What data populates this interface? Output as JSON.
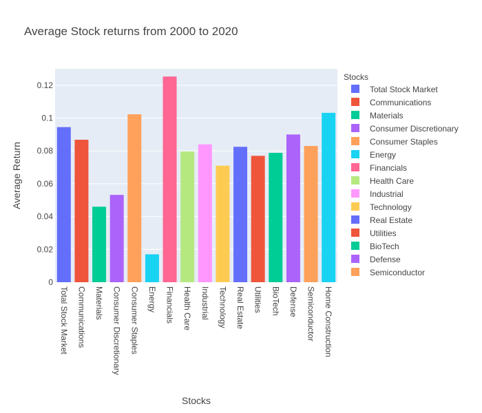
{
  "chart_data": {
    "type": "bar",
    "title": "Average Stock returns from 2000 to 2020",
    "xlabel": "Stocks",
    "ylabel": "Average Return",
    "ylim": [
      0,
      0.13
    ],
    "yticks": [
      0,
      0.02,
      0.04,
      0.06,
      0.08,
      0.1,
      0.12
    ],
    "ytick_labels": [
      "0",
      "0.02",
      "0.04",
      "0.06",
      "0.08",
      "0.1",
      "0.12"
    ],
    "grid": true,
    "legend_title": "Stocks",
    "legend_position": "right",
    "categories": [
      "Total Stock Market",
      "Communications",
      "Materials",
      "Consumer Discretionary",
      "Consumer Staples",
      "Energy",
      "Financials",
      "Health Care",
      "Industrial",
      "Technology",
      "Real Estate",
      "Utilities",
      "BioTech",
      "Defense",
      "Semiconductor",
      "Home Construction"
    ],
    "values": [
      0.0945,
      0.0868,
      0.046,
      0.0532,
      0.1023,
      0.017,
      0.1253,
      0.0797,
      0.084,
      0.071,
      0.0825,
      0.077,
      0.0788,
      0.09,
      0.083,
      0.1032
    ],
    "colors": [
      "#636EFA",
      "#EF553B",
      "#00CC96",
      "#AB63FA",
      "#FFA15A",
      "#19D3F3",
      "#FF6692",
      "#B6E880",
      "#FF97FF",
      "#FECB52",
      "#636EFA",
      "#EF553B",
      "#00CC96",
      "#AB63FA",
      "#FFA15A",
      "#19D3F3"
    ],
    "plot_bg": "#E5ECF6"
  }
}
